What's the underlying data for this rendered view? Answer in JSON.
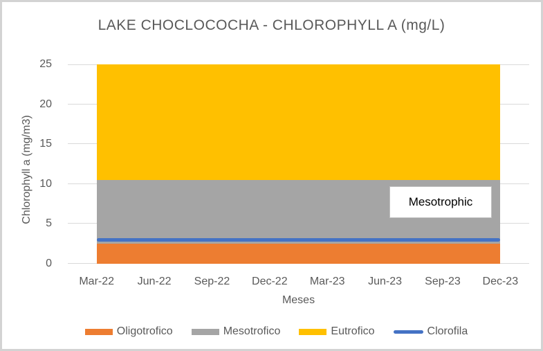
{
  "title": "LAKE CHOCLOCOCHA - CHLOROPHYLL A (mg/L)",
  "annotation": {
    "label": "Mesotrophic"
  },
  "styles": {
    "text_color": "#595959",
    "gridline_color": "#D9D9D9",
    "axis_line_color": "#D9D9D9",
    "annotation_border": "#BFBFBF",
    "background": "#FFFFFF",
    "frame_border": "#D3D3D3"
  },
  "chart_data": {
    "type": "area",
    "subtype": "stacked",
    "title": "LAKE CHOCLOCOCHA - CHLOROPHYLL A (mg/L)",
    "xlabel": "Meses",
    "ylabel": "Chlorophyll a (mg/m3)",
    "categories": [
      "Mar-22",
      "Jun-22",
      "Sep-22",
      "Dec-22",
      "Mar-23",
      "Jun-23",
      "Sep-23",
      "Dec-23"
    ],
    "ylim": [
      0,
      25
    ],
    "yticks": [
      0,
      5,
      10,
      15,
      20,
      25
    ],
    "grid": true,
    "legend_position": "bottom",
    "series": [
      {
        "name": "Oligotrofico",
        "type": "area",
        "color": "#ED7D31",
        "values": [
          2.5,
          2.5,
          2.5,
          2.5,
          2.5,
          2.5,
          2.5,
          2.5
        ],
        "stack_range": [
          0,
          2.5
        ]
      },
      {
        "name": "Mesotrofico",
        "type": "area",
        "color": "#A5A5A5",
        "values": [
          8,
          8,
          8,
          8,
          8,
          8,
          8,
          8
        ],
        "stack_range": [
          2.5,
          10.5
        ]
      },
      {
        "name": "Eutrofico",
        "type": "area",
        "color": "#FFC000",
        "values": [
          14.5,
          14.5,
          14.5,
          14.5,
          14.5,
          14.5,
          14.5,
          14.5
        ],
        "stack_range": [
          10.5,
          25
        ]
      },
      {
        "name": "Clorofila",
        "type": "line",
        "color": "#4472C4",
        "values": [
          3,
          3,
          3,
          3,
          3,
          3,
          3,
          3
        ]
      }
    ],
    "annotations": [
      {
        "text": "Mesotrophic",
        "x": "Sep-23",
        "y_range": [
          5.7,
          9.7
        ]
      }
    ]
  }
}
